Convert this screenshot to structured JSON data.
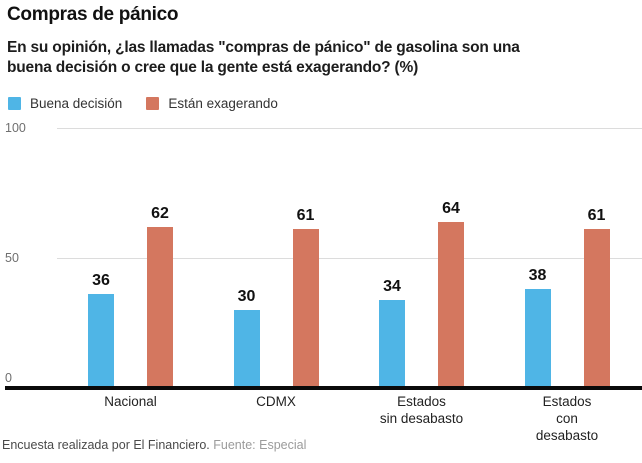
{
  "header": {
    "title": "Compras de pánico",
    "subtitle": "En su opinión, ¿las llamadas \"compras de pánico\" de gasolina son una\nbuena decisión o cree que la gente está exagerando? (%)"
  },
  "legend": [
    {
      "label": "Buena decisión",
      "color": "#4FB5E6"
    },
    {
      "label": "Están exagerando",
      "color": "#D4775F"
    }
  ],
  "chart_data": {
    "type": "bar",
    "title": "Compras de pánico",
    "subtitle": "En su opinión, ¿las llamadas \"compras de pánico\" de gasolina son una buena decisión o cree que la gente está exagerando? (%)",
    "categories": [
      "Nacional",
      "CDMX",
      "Estados\nsin desabasto",
      "Estados\ncon desabasto"
    ],
    "series": [
      {
        "name": "Buena decisión",
        "color": "#4FB5E6",
        "values": [
          36,
          30,
          34,
          38
        ]
      },
      {
        "name": "Están exagerando",
        "color": "#D4775F",
        "values": [
          62,
          61,
          64,
          61
        ]
      }
    ],
    "xlabel": "",
    "ylabel": "",
    "ylim": [
      0,
      100
    ],
    "yticks": [
      100,
      50,
      0
    ],
    "grid": true,
    "legend_position": "top-left",
    "value_labels": true
  },
  "colors": {
    "gridline": "#dcdcdc",
    "baseline": "#0a0a0a",
    "background": "#ffffff"
  },
  "footer": {
    "credit": "Encuesta realizada por El Financiero.",
    "source": "Fuente: Especial"
  }
}
